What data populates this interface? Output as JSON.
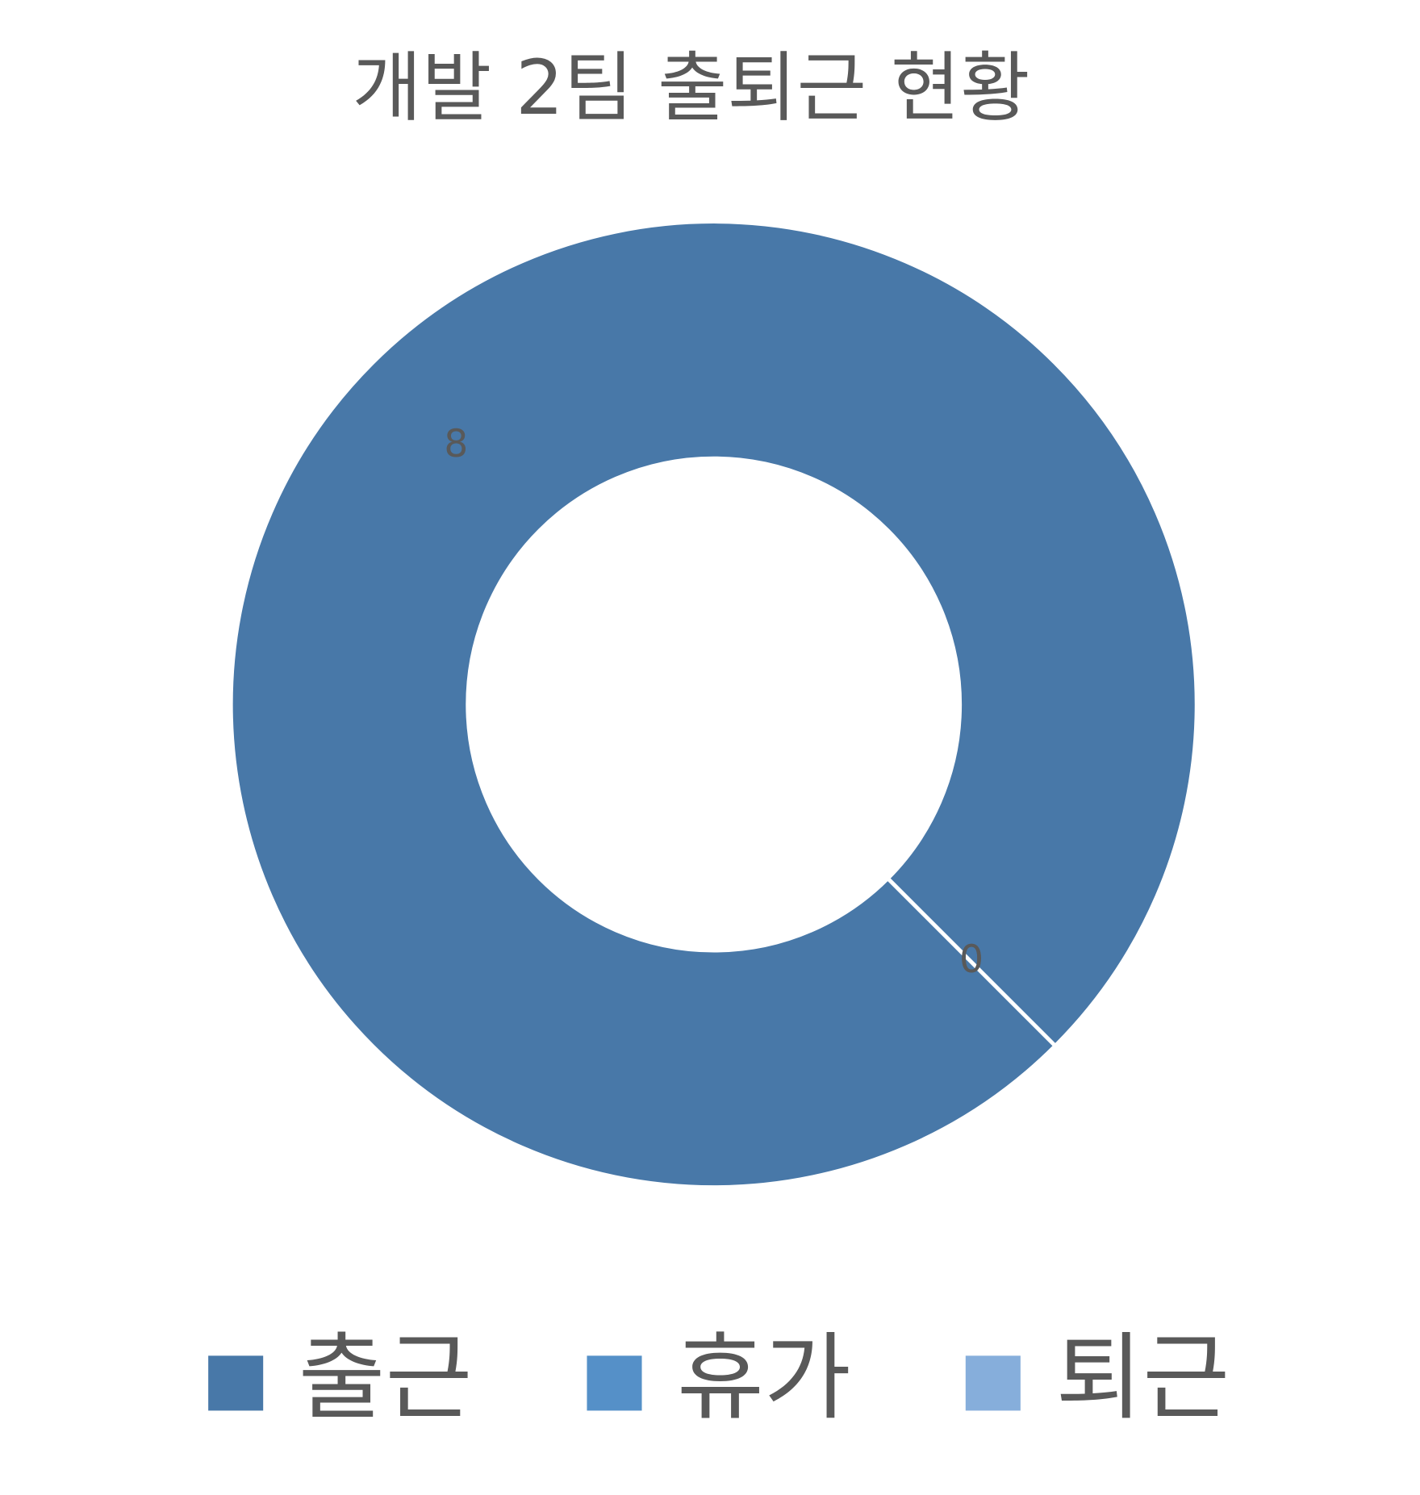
{
  "chart_data": {
    "type": "donut",
    "title": "개발 2팀 출퇴근 현황",
    "categories": [
      "출근",
      "휴가",
      "퇴근"
    ],
    "values": [
      8,
      0,
      0
    ],
    "colors": [
      "#4878a8",
      "#5590c8",
      "#86aedb"
    ],
    "legend": "bottom"
  }
}
